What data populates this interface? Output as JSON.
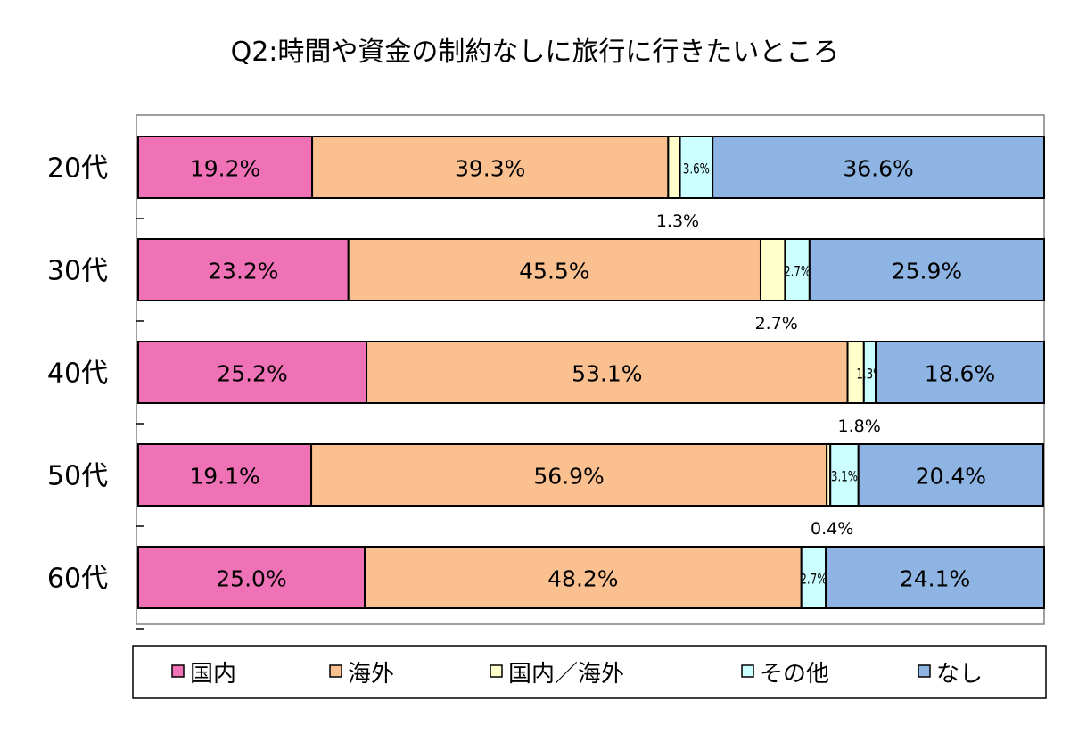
{
  "chart_data": {
    "type": "bar",
    "orientation": "horizontal",
    "stacked": "percent",
    "title": "Q2:時間や資金の制約なしに旅行に行きたいところ",
    "xlabel": "",
    "ylabel": "",
    "xlim": [
      0,
      100
    ],
    "grid": false,
    "legend_position": "bottom",
    "categories": [
      "20代",
      "30代",
      "40代",
      "50代",
      "60代"
    ],
    "series": [
      {
        "name": "国内",
        "color": "#f072b6",
        "values": [
          19.2,
          23.2,
          25.2,
          19.1,
          25.0
        ],
        "labels": [
          "19.2%",
          "23.2%",
          "25.2%",
          "19.1%",
          "25.0%"
        ]
      },
      {
        "name": "海外",
        "color": "#fac090",
        "values": [
          39.3,
          45.5,
          53.1,
          56.9,
          48.2
        ],
        "labels": [
          "39.3%",
          "45.5%",
          "53.1%",
          "56.9%",
          "48.2%"
        ]
      },
      {
        "name": "国内／海外",
        "color": "#ffffcc",
        "values": [
          1.3,
          2.7,
          1.8,
          0.4,
          0.0
        ],
        "labels": [
          "1.3%",
          "2.7%",
          "1.8%",
          "0.4%",
          ""
        ]
      },
      {
        "name": "その他",
        "color": "#ccffff",
        "values": [
          3.6,
          2.7,
          1.3,
          3.1,
          2.7
        ],
        "labels": [
          "3.6%",
          "2.7%",
          "1.3%",
          "3.1%",
          "2.7%"
        ]
      },
      {
        "name": "なし",
        "color": "#8db4e2",
        "values": [
          36.6,
          25.9,
          18.6,
          20.4,
          24.1
        ],
        "labels": [
          "36.6%",
          "25.9%",
          "18.6%",
          "20.4%",
          "24.1%"
        ]
      }
    ]
  }
}
